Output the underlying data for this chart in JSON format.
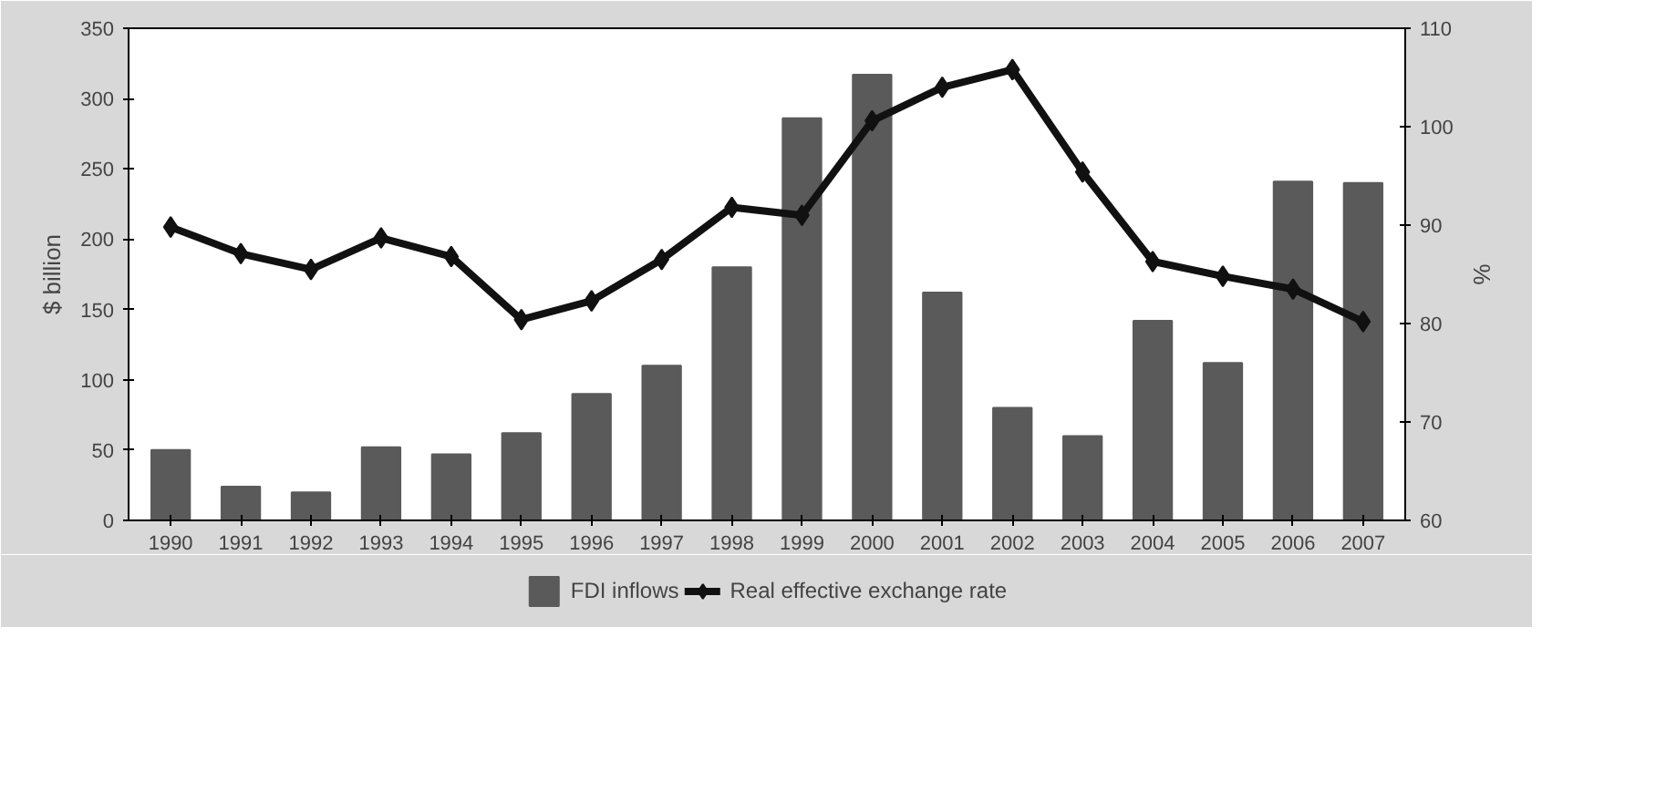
{
  "chart_data": {
    "type": "bar",
    "ylabel": "$ billion",
    "y2label": "%",
    "categories": [
      "1990",
      "1991",
      "1992",
      "1993",
      "1994",
      "1995",
      "1996",
      "1997",
      "1998",
      "1999",
      "2000",
      "2001",
      "2002",
      "2003",
      "2004",
      "2005",
      "2006",
      "2007"
    ],
    "series": [
      {
        "name": "FDI inflows",
        "color": "#5a5a5a",
        "values": [
          50,
          24,
          20,
          52,
          47,
          62,
          90,
          110,
          180,
          286,
          317,
          162,
          80,
          60,
          142,
          112,
          241,
          240
        ]
      },
      {
        "name": "Real effective exchange rate",
        "type": "line",
        "axis": "y2",
        "color": "#111111",
        "values": [
          89.8,
          87.1,
          85.5,
          88.7,
          86.8,
          80.4,
          82.3,
          86.5,
          91.8,
          91.0,
          100.6,
          104.0,
          105.8,
          95.4,
          86.3,
          84.8,
          83.5,
          80.2
        ]
      }
    ],
    "ylim": [
      0,
      350
    ],
    "yticks": [
      0,
      50,
      100,
      150,
      200,
      250,
      300,
      350
    ],
    "y2lim": [
      60,
      110
    ],
    "y2ticks": [
      60,
      70,
      80,
      90,
      100,
      110
    ],
    "marker": "diamond",
    "legend": "bottom",
    "grid": false
  }
}
